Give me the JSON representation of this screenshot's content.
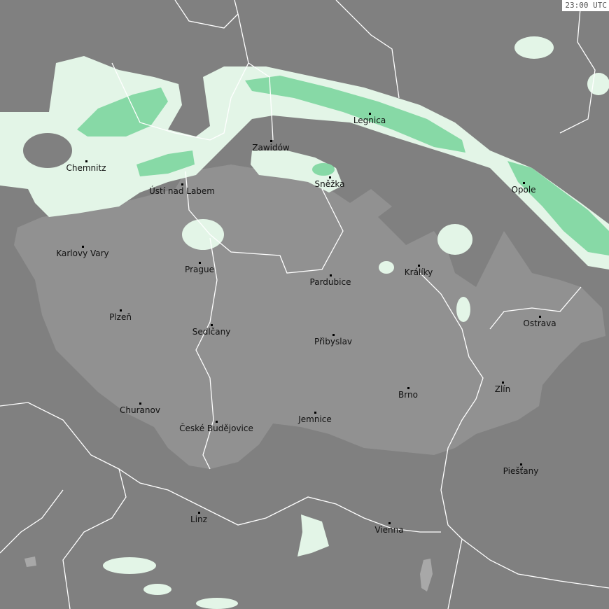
{
  "timestamp": "23:00 UTC",
  "colors": {
    "background": "#808080",
    "focus_country": "#919191",
    "precip_light": "#e3f5e7",
    "precip_moderate": "#87d9a6",
    "borders": "#ffffff",
    "lakes": "#a8a8a8"
  },
  "cities": [
    {
      "name": "Chemnitz"
    },
    {
      "name": "Ústí nad Labem"
    },
    {
      "name": "Zawidów"
    },
    {
      "name": "Legnica"
    },
    {
      "name": "Sněžka"
    },
    {
      "name": "Opole"
    },
    {
      "name": "Karlovy Vary"
    },
    {
      "name": "Prague"
    },
    {
      "name": "Pardubice"
    },
    {
      "name": "Králíky"
    },
    {
      "name": "Plzeň"
    },
    {
      "name": "Sedlčany"
    },
    {
      "name": "Přibyslav"
    },
    {
      "name": "Ostrava"
    },
    {
      "name": "Brno"
    },
    {
      "name": "Zlín"
    },
    {
      "name": "Churanov"
    },
    {
      "name": "České Budějovice"
    },
    {
      "name": "Jemnice"
    },
    {
      "name": "Piešťany"
    },
    {
      "name": "Linz"
    },
    {
      "name": "Vienna"
    }
  ]
}
